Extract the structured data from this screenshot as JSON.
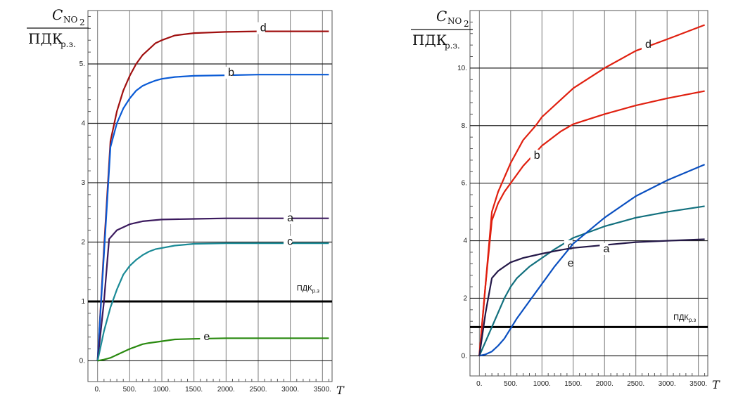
{
  "chart_data": [
    {
      "type": "line",
      "ylabel": {
        "numerator": "C",
        "numerator_sub": "NO",
        "numerator_sub2": "2",
        "denominator": "ПДК",
        "denominator_sub": "р.з."
      },
      "xlabel": "T",
      "xlim": [
        -150,
        3650
      ],
      "ylim": [
        -0.35,
        5.9
      ],
      "xticks": [
        "0.",
        "500.",
        "1000.",
        "1500.",
        "2000.",
        "2500.",
        "3000.",
        "3500."
      ],
      "yticks": [
        "0.",
        "1",
        "2",
        "3",
        "4",
        "5."
      ],
      "ytick_values": [
        0,
        1,
        2,
        3,
        4,
        5
      ],
      "threshold": {
        "y": 1.0,
        "label": "ПДК",
        "label_sub": "р.з",
        "label_x": 3100,
        "label_y": 1.18
      },
      "series": [
        {
          "label": "d",
          "color": "#a01010",
          "label_x": 2530,
          "label_y": 5.55,
          "x": [
            0,
            100,
            200,
            300,
            400,
            500,
            600,
            700,
            800,
            900,
            1000,
            1200,
            1500,
            2000,
            2500,
            3000,
            3600
          ],
          "y": [
            0,
            1.9,
            3.7,
            4.2,
            4.55,
            4.8,
            5.0,
            5.15,
            5.25,
            5.35,
            5.4,
            5.48,
            5.52,
            5.54,
            5.55,
            5.55,
            5.55
          ]
        },
        {
          "label": "b",
          "color": "#0a5bd6",
          "label_x": 2030,
          "label_y": 4.8,
          "x": [
            0,
            100,
            200,
            300,
            400,
            500,
            600,
            700,
            800,
            900,
            1000,
            1200,
            1500,
            2000,
            2500,
            3000,
            3600
          ],
          "y": [
            0,
            1.8,
            3.6,
            4.0,
            4.25,
            4.42,
            4.55,
            4.63,
            4.68,
            4.72,
            4.75,
            4.78,
            4.8,
            4.81,
            4.82,
            4.82,
            4.82
          ]
        },
        {
          "label": "a",
          "color": "#3b1a5e",
          "label_x": 2950,
          "label_y": 2.35,
          "x": [
            0,
            100,
            180,
            300,
            500,
            700,
            1000,
            1500,
            2000,
            2500,
            3000,
            3600
          ],
          "y": [
            0,
            1.0,
            2.05,
            2.2,
            2.3,
            2.35,
            2.38,
            2.39,
            2.4,
            2.4,
            2.4,
            2.4
          ]
        },
        {
          "label": "c",
          "color": "#1a8a96",
          "label_x": 2950,
          "label_y": 1.95,
          "x": [
            0,
            100,
            200,
            300,
            400,
            500,
            600,
            700,
            800,
            900,
            1000,
            1200,
            1500,
            2000,
            2500,
            3000,
            3600
          ],
          "y": [
            0,
            0.5,
            0.9,
            1.2,
            1.45,
            1.6,
            1.7,
            1.78,
            1.84,
            1.88,
            1.9,
            1.94,
            1.97,
            1.98,
            1.98,
            1.98,
            1.98
          ]
        },
        {
          "label": "e",
          "color": "#2a8a10",
          "label_x": 1650,
          "label_y": 0.35,
          "x": [
            0,
            100,
            200,
            300,
            400,
            500,
            600,
            700,
            800,
            1000,
            1200,
            1500,
            2000,
            2500,
            3000,
            3600
          ],
          "y": [
            0,
            0.02,
            0.05,
            0.1,
            0.15,
            0.2,
            0.24,
            0.28,
            0.3,
            0.33,
            0.36,
            0.37,
            0.38,
            0.38,
            0.38,
            0.38
          ]
        }
      ]
    },
    {
      "type": "line",
      "ylabel": {
        "numerator": "C",
        "numerator_sub": "NO",
        "numerator_sub2": "2",
        "denominator": "ПДК",
        "denominator_sub": "р.з."
      },
      "xlabel": "T",
      "xlim": [
        -150,
        3650
      ],
      "ylim": [
        -0.7,
        12.0
      ],
      "xticks": [
        "0.",
        "500.",
        "1000.",
        "1500.",
        "2000.",
        "2500.",
        "3000.",
        "3500."
      ],
      "yticks": [
        "0.",
        "2",
        "4",
        "6.",
        "8.",
        "10."
      ],
      "ytick_values": [
        0,
        2,
        4,
        6,
        8,
        10
      ],
      "threshold": {
        "y": 1.0,
        "label": "ПДК",
        "label_sub": "р.з",
        "label_x": 3100,
        "label_y": 1.25
      },
      "series": [
        {
          "label": "d",
          "color": "#e02010",
          "label_x": 2650,
          "label_y": 10.7,
          "x": [
            0,
            100,
            200,
            300,
            400,
            500,
            700,
            900,
            1000,
            1300,
            1500,
            2000,
            2500,
            3000,
            3600
          ],
          "y": [
            0,
            2.5,
            5.0,
            5.7,
            6.2,
            6.7,
            7.5,
            8.0,
            8.3,
            8.9,
            9.3,
            10.0,
            10.6,
            11.0,
            11.5
          ]
        },
        {
          "label": "b",
          "color": "#e02010",
          "label_x": 870,
          "label_y": 6.85,
          "x": [
            0,
            100,
            200,
            300,
            400,
            500,
            700,
            1000,
            1300,
            1500,
            2000,
            2500,
            3000,
            3600
          ],
          "y": [
            0,
            2.5,
            4.7,
            5.3,
            5.7,
            6.0,
            6.6,
            7.3,
            7.8,
            8.05,
            8.4,
            8.7,
            8.95,
            9.2
          ]
        },
        {
          "label": "c",
          "color": "#12707e",
          "label_x": 1410,
          "label_y": 3.7,
          "x": [
            0,
            100,
            200,
            300,
            400,
            500,
            600,
            800,
            1000,
            1200,
            1500,
            2000,
            2500,
            3000,
            3600
          ],
          "y": [
            0,
            0.5,
            1.0,
            1.5,
            2.0,
            2.4,
            2.7,
            3.1,
            3.4,
            3.7,
            4.1,
            4.5,
            4.8,
            5.0,
            5.2
          ]
        },
        {
          "label": "e",
          "color": "#0a4fc0",
          "label_x": 1410,
          "label_y": 3.1,
          "x": [
            0,
            100,
            200,
            300,
            400,
            500,
            600,
            800,
            1000,
            1200,
            1500,
            2000,
            2500,
            3000,
            3600
          ],
          "y": [
            0,
            0.05,
            0.15,
            0.35,
            0.6,
            0.95,
            1.3,
            1.9,
            2.5,
            3.1,
            3.9,
            4.8,
            5.55,
            6.1,
            6.65
          ]
        },
        {
          "label": "a",
          "color": "#241848",
          "label_x": 1980,
          "label_y": 3.6,
          "x": [
            0,
            100,
            200,
            300,
            400,
            500,
            700,
            900,
            1000,
            1300,
            1500,
            2000,
            2500,
            3000,
            3600
          ],
          "y": [
            0,
            1.5,
            2.7,
            2.95,
            3.1,
            3.25,
            3.4,
            3.5,
            3.55,
            3.68,
            3.75,
            3.85,
            3.95,
            4.0,
            4.05
          ]
        }
      ]
    }
  ]
}
